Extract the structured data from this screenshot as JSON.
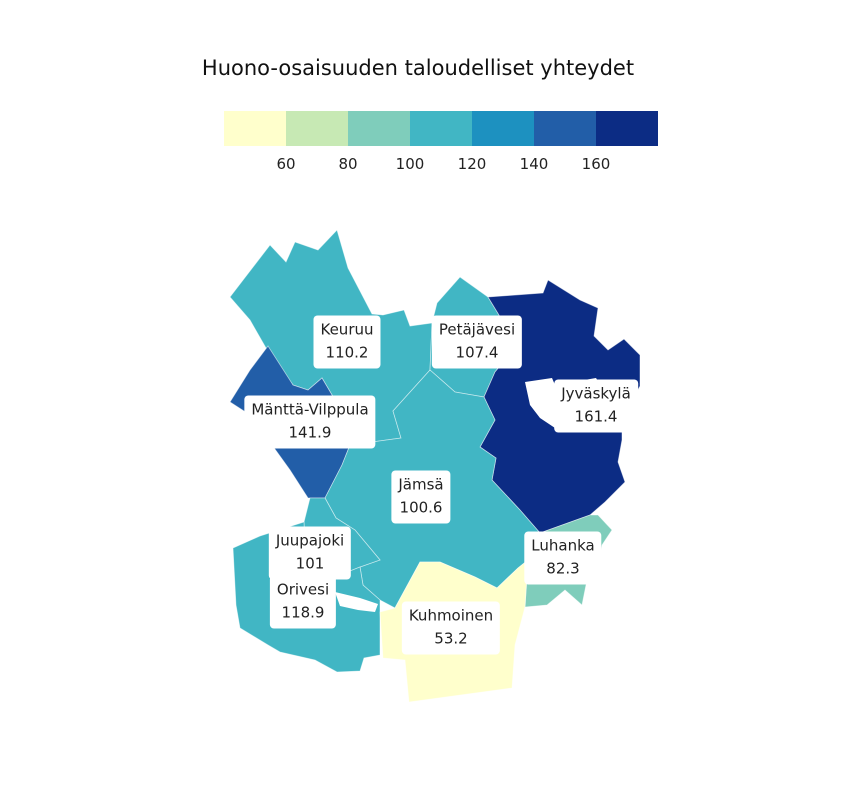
{
  "title": "Huono-osaisuuden taloudelliset yhteydet",
  "legend": {
    "colors": [
      "#ffffcc",
      "#c7e9b4",
      "#7fcdbb",
      "#41b6c4",
      "#1d91c0",
      "#225ea8",
      "#0c2c84"
    ],
    "ticks": [
      "60",
      "80",
      "100",
      "120",
      "140",
      "160"
    ]
  },
  "regions": [
    {
      "name": "Keuruu",
      "value": "110.2",
      "color": "#41b6c4"
    },
    {
      "name": "Petäjävesi",
      "value": "107.4",
      "color": "#41b6c4"
    },
    {
      "name": "Jyväskylä",
      "value": "161.4",
      "color": "#0c2c84"
    },
    {
      "name": "Mänttä-Vilppula",
      "value": "141.9",
      "color": "#225ea8"
    },
    {
      "name": "Jämsä",
      "value": "100.6",
      "color": "#41b6c4"
    },
    {
      "name": "Juupajoki",
      "value": "101",
      "color": "#41b6c4"
    },
    {
      "name": "Orivesi",
      "value": "118.9",
      "color": "#41b6c4"
    },
    {
      "name": "Luhanka",
      "value": "82.3",
      "color": "#7fcdbb"
    },
    {
      "name": "Kuhmoinen",
      "value": "53.2",
      "color": "#ffffcc"
    }
  ]
}
